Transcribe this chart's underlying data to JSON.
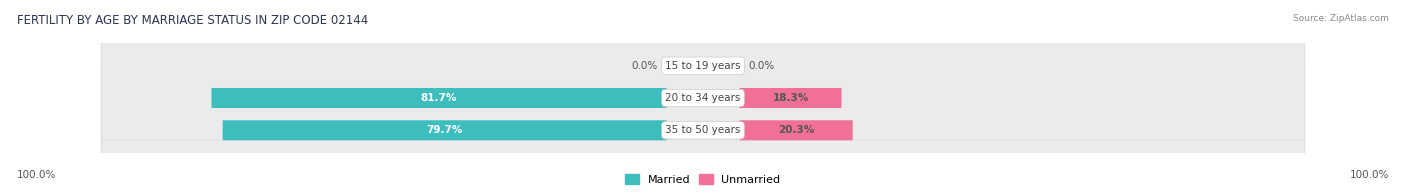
{
  "title": "FERTILITY BY AGE BY MARRIAGE STATUS IN ZIP CODE 02144",
  "source": "Source: ZipAtlas.com",
  "categories": [
    "15 to 19 years",
    "20 to 34 years",
    "35 to 50 years"
  ],
  "married_values": [
    0.0,
    81.7,
    79.7
  ],
  "unmarried_values": [
    0.0,
    18.3,
    20.3
  ],
  "married_color": "#3DBDBD",
  "unmarried_color": "#F07098",
  "bar_bg_color": "#EBEBEB",
  "bar_bg_border": "#DCDCDC",
  "title_fontsize": 8.5,
  "label_fontsize": 7.5,
  "axis_label_fontsize": 7.5,
  "legend_fontsize": 8,
  "source_fontsize": 6.5,
  "background_color": "#FFFFFF",
  "axis_left_label": "100.0%",
  "axis_right_label": "100.0%",
  "center_label_color": "#444444",
  "value_label_color_dark": "#555555",
  "value_label_color_white": "#FFFFFF"
}
